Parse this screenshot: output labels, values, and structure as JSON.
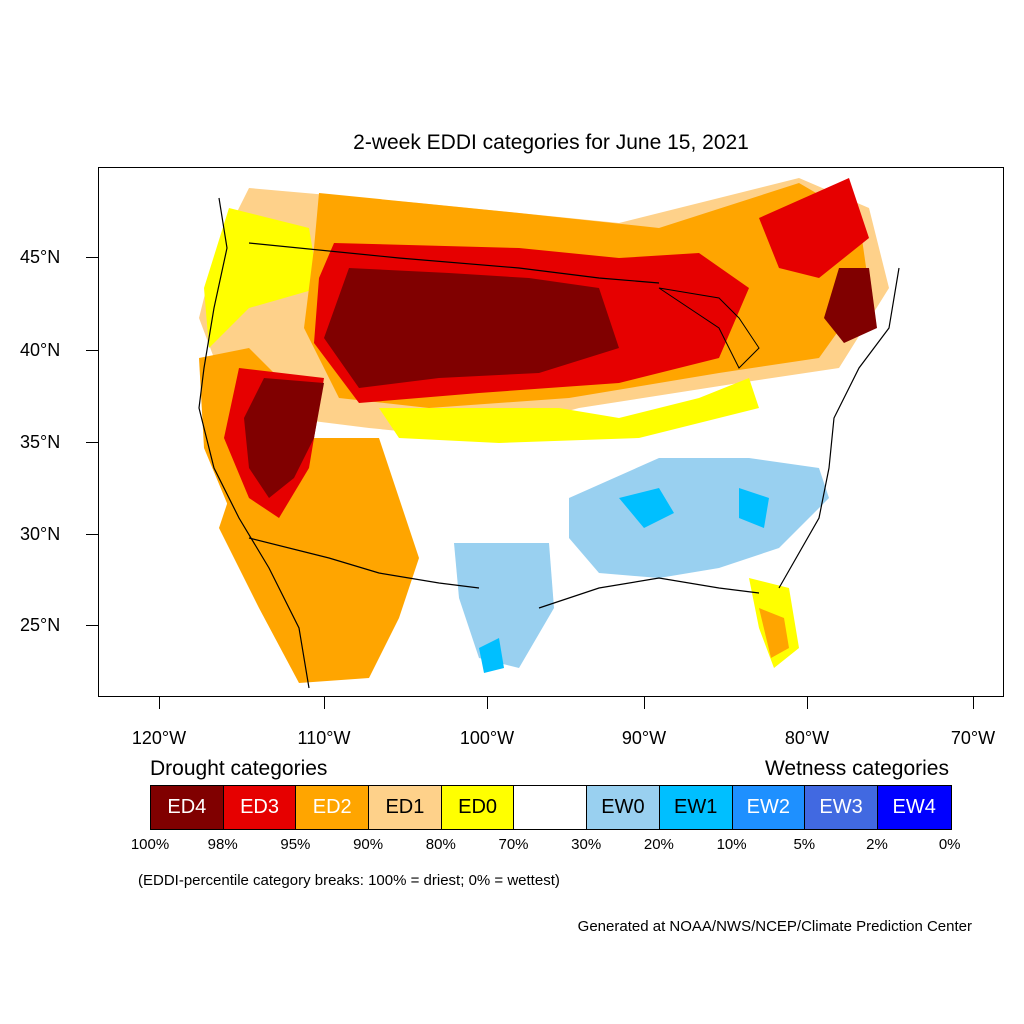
{
  "title": "2-week EDDI categories for June 15, 2021",
  "lat_labels": [
    "45°N",
    "40°N",
    "35°N",
    "30°N",
    "25°N"
  ],
  "lon_labels": [
    "120°W",
    "110°W",
    "100°W",
    "90°W",
    "80°W",
    "70°W"
  ],
  "legend": {
    "drought_heading": "Drought categories",
    "wetness_heading": "Wetness categories",
    "categories": [
      {
        "label": "ED4",
        "color": "#800000",
        "text_color": "#ffffff"
      },
      {
        "label": "ED3",
        "color": "#e60000",
        "text_color": "#ffffff"
      },
      {
        "label": "ED2",
        "color": "#ffa500",
        "text_color": "#ffffff"
      },
      {
        "label": "ED1",
        "color": "#fed18a",
        "text_color": "#000000"
      },
      {
        "label": "ED0",
        "color": "#ffff00",
        "text_color": "#000000"
      },
      {
        "label": "",
        "color": "#ffffff",
        "text_color": "#000000"
      },
      {
        "label": "EW0",
        "color": "#99d0f0",
        "text_color": "#000000"
      },
      {
        "label": "EW1",
        "color": "#00bfff",
        "text_color": "#000000"
      },
      {
        "label": "EW2",
        "color": "#1e90ff",
        "text_color": "#ffffff"
      },
      {
        "label": "EW3",
        "color": "#4169e1",
        "text_color": "#ffffff"
      },
      {
        "label": "EW4",
        "color": "#0000ff",
        "text_color": "#ffffff"
      }
    ],
    "percentiles": [
      "100%",
      "98%",
      "95%",
      "90%",
      "80%",
      "70%",
      "30%",
      "20%",
      "10%",
      "5%",
      "2%",
      "0%"
    ]
  },
  "note": "(EDDI-percentile category breaks: 100% = driest; 0% = wettest)",
  "credit": "Generated at NOAA/NWS/NCEP/Climate Prediction Center"
}
